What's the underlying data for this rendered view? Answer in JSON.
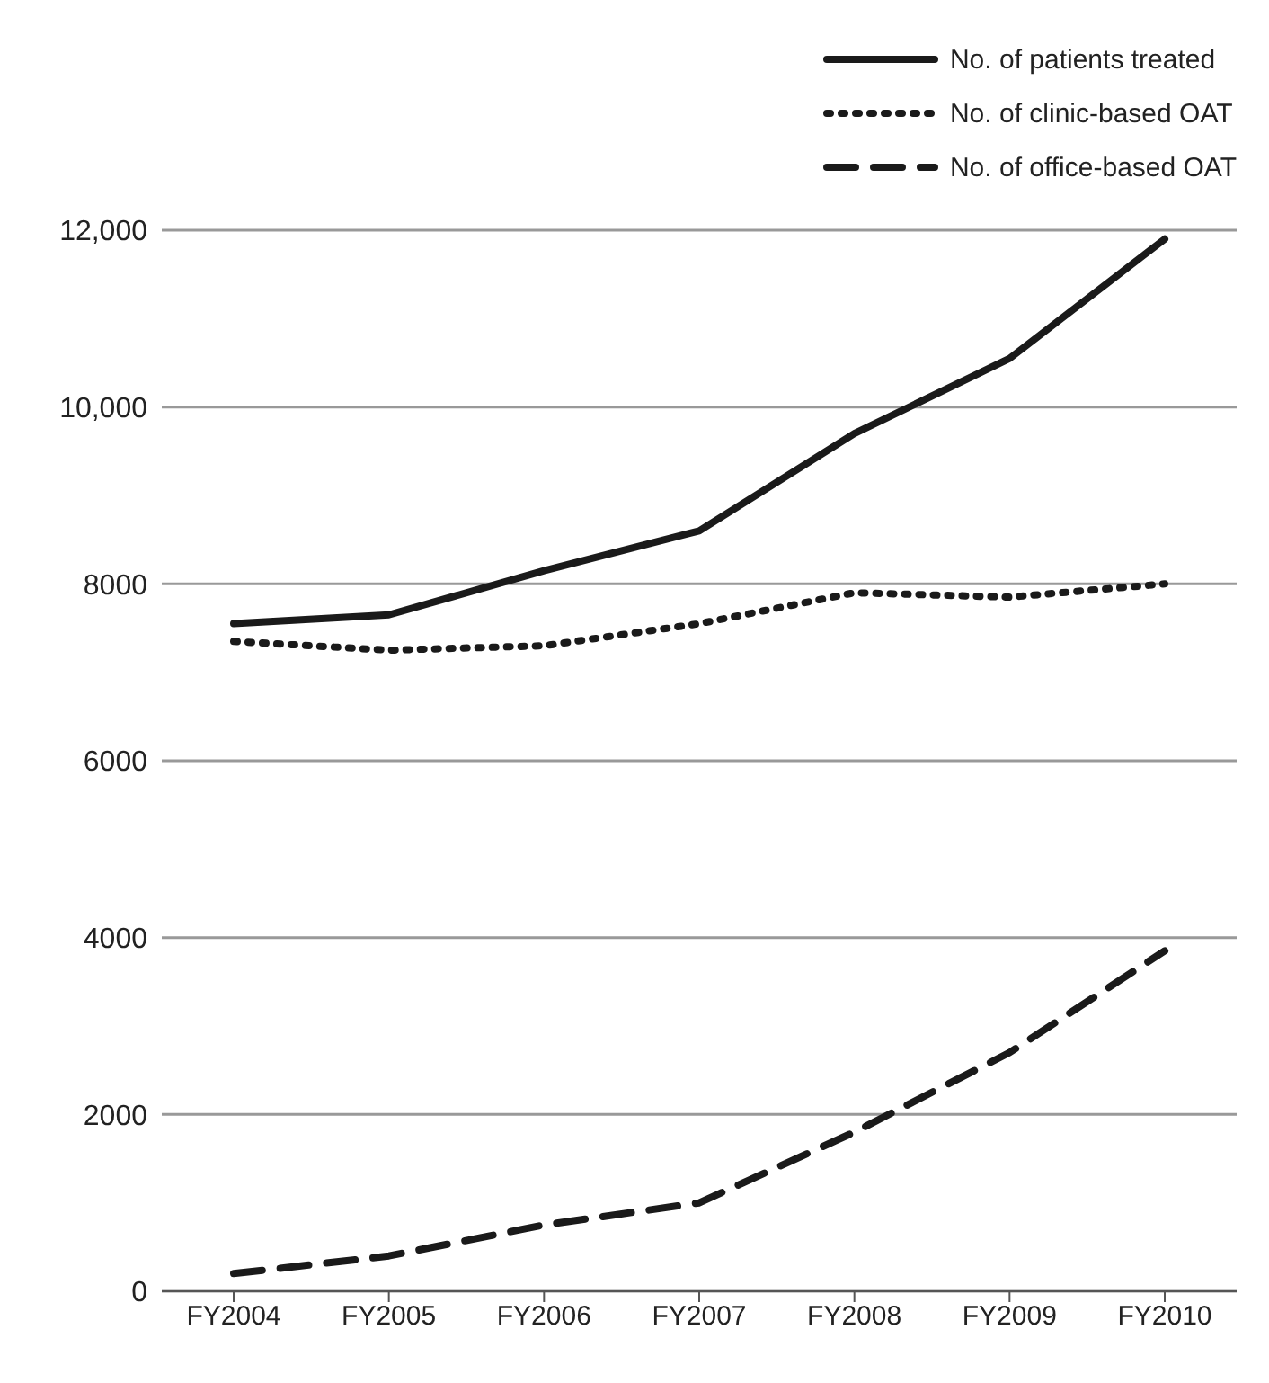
{
  "chart_data": {
    "type": "line",
    "categories": [
      "FY2004",
      "FY2005",
      "FY2006",
      "FY2007",
      "FY2008",
      "FY2009",
      "FY2010"
    ],
    "series": [
      {
        "name": "No. of patients treated",
        "color": "#1a1a1a",
        "line_style": "solid",
        "values": [
          7550,
          7650,
          8150,
          8600,
          9700,
          10550,
          11900
        ]
      },
      {
        "name": "No. of clinic-based OAT",
        "color": "#1a1a1a",
        "line_style": "dotted",
        "values": [
          7350,
          7250,
          7300,
          7550,
          7900,
          7850,
          8000
        ]
      },
      {
        "name": "No. of office-based OAT",
        "color": "#1a1a1a",
        "line_style": "dashed",
        "values": [
          200,
          400,
          750,
          1000,
          1800,
          2700,
          3850
        ]
      }
    ],
    "ylim": [
      0,
      12000
    ],
    "yticks": [
      0,
      2000,
      4000,
      6000,
      8000,
      {
        "value": 10000,
        "label": "10,000"
      },
      {
        "value": 12000,
        "label": "12,000"
      }
    ],
    "grid": "y",
    "legend": "top right",
    "marker": "none"
  }
}
